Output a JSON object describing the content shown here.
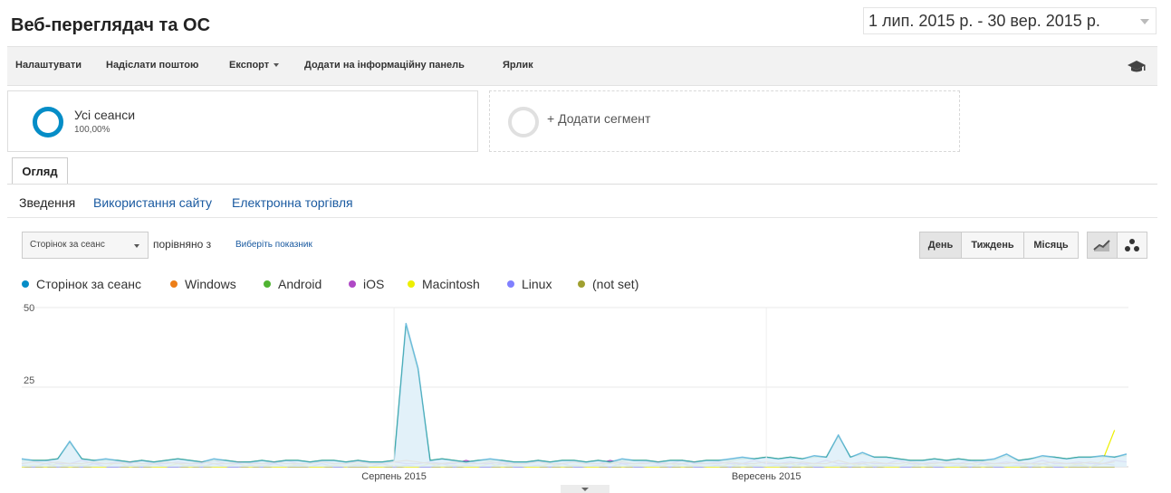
{
  "header": {
    "title": "Веб-переглядач та ОС",
    "date_range": "1 лип. 2015 р. - 30 вер. 2015 р."
  },
  "toolbar": {
    "settings": "Налаштувати",
    "email": "Надіслати поштою",
    "export": "Експорт",
    "add_dashboard": "Додати на інформаційну панель",
    "shortcut": "Ярлик",
    "icon": "graduation-cap-icon"
  },
  "segments": {
    "all": {
      "name": "Усі сеанси",
      "percent": "100,00%",
      "color": "#058dc7"
    },
    "add": {
      "label": "+ Додати сегмент"
    }
  },
  "tabs": {
    "overview": "Огляд"
  },
  "subtabs": [
    "Зведення",
    "Використання сайту",
    "Електронна торгівля"
  ],
  "controls": {
    "metric": "Сторінок за сеанс",
    "compare": "порівняно з",
    "pick_metric": "Виберіть показник",
    "day": "День",
    "week": "Тиждень",
    "month": "Місяць",
    "line_icon": "line-chart-icon",
    "motion_icon": "motion-chart-icon"
  },
  "legend": [
    {
      "name": "Сторінок за сеанс",
      "color": "#058dc7"
    },
    {
      "name": "Windows",
      "color": "#ed7e17"
    },
    {
      "name": "Android",
      "color": "#50b432"
    },
    {
      "name": "iOS",
      "color": "#af49c5"
    },
    {
      "name": "Macintosh",
      "color": "#edef00"
    },
    {
      "name": "Linux",
      "color": "#8080ff"
    },
    {
      "name": "(not set)",
      "color": "#a0a030"
    }
  ],
  "chart_data": {
    "type": "line",
    "x_start": "2015-07-01",
    "x_end": "2015-09-30",
    "x_ticks": [
      "Серпень 2015",
      "Вересень 2015"
    ],
    "y_ticks": [
      25,
      50
    ],
    "ylim": [
      0,
      50
    ],
    "grid": true,
    "legend_position": "top",
    "series": [
      {
        "name": "Сторінок за сеанс",
        "color": "#058dc7",
        "area": true,
        "values": [
          2.5,
          2,
          2,
          2.5,
          8,
          2.5,
          2,
          2.5,
          2,
          1.5,
          2,
          1.5,
          2,
          2.5,
          2,
          1.5,
          2.5,
          2,
          1.5,
          1.5,
          2,
          1.5,
          2,
          2,
          1.5,
          2,
          2,
          1.5,
          2,
          1.5,
          1.5,
          2,
          45,
          31,
          2,
          2.5,
          2,
          1.5,
          2,
          2.5,
          2,
          1.5,
          1.5,
          2,
          1.5,
          2,
          2,
          1.5,
          2,
          1.5,
          2.5,
          2,
          2,
          1.5,
          2,
          2,
          1.5,
          2,
          2,
          2.5,
          3,
          2.5,
          3,
          2.5,
          3,
          2.5,
          3.5,
          3,
          10,
          3,
          4.5,
          3,
          3,
          2.5,
          2,
          2,
          2.5,
          2,
          2.5,
          2,
          2,
          2.5,
          4,
          2,
          2.5,
          3.5,
          3,
          2.5,
          3,
          3,
          3.5,
          3,
          4
        ]
      },
      {
        "name": "Windows",
        "color": "#ed7e17",
        "values": [
          1,
          1.5,
          1,
          1.5,
          1,
          1,
          1.5,
          1,
          1,
          1.5,
          1,
          1,
          1.5,
          1,
          1,
          1.5,
          1,
          1,
          1.5,
          1,
          1,
          1.5,
          1,
          1,
          1,
          1.5,
          1,
          1,
          1.5,
          1,
          1,
          1.5,
          2,
          1.5,
          1,
          1,
          1.5,
          1,
          1,
          1.5,
          1,
          1,
          1,
          1.5,
          1,
          1,
          1.5,
          1,
          1,
          1,
          1.5,
          1,
          1,
          1.5,
          1,
          1,
          1.5,
          1,
          1,
          1.5,
          1,
          1,
          1.5,
          1,
          1,
          1.5,
          1,
          1,
          2,
          1,
          1,
          1.5,
          1,
          1,
          1.5,
          1,
          1,
          1.5,
          1,
          1,
          1.5,
          1,
          1,
          1.5,
          1,
          1,
          1.5,
          1,
          1,
          1.5,
          1,
          1.5
        ]
      },
      {
        "name": "Android",
        "color": "#50b432",
        "values": [
          2,
          2,
          2,
          2.5,
          7.5,
          2.5,
          2,
          2,
          2,
          1.5,
          2,
          1.5,
          2,
          2.5,
          2,
          1.5,
          2,
          2,
          1.5,
          1.5,
          2,
          1.5,
          2,
          2,
          1.5,
          2,
          2,
          1.5,
          2,
          1.5,
          1.5,
          2,
          44,
          30,
          2,
          2.5,
          2,
          1.5,
          2,
          2,
          2,
          1.5,
          1.5,
          2,
          1.5,
          2,
          2,
          1.5,
          2,
          1.5,
          2,
          2,
          2,
          1.5,
          2,
          2,
          1.5,
          2,
          2,
          2,
          2.5,
          2.5,
          3,
          2.5,
          3,
          2.5,
          3,
          3,
          9.5,
          3,
          4,
          3,
          3,
          2.5,
          2,
          2,
          2.5,
          2,
          2.5,
          2,
          2,
          2,
          3.5,
          2,
          2.5,
          3,
          3,
          2.5,
          3,
          3,
          3,
          3,
          3.5
        ]
      },
      {
        "name": "iOS",
        "color": "#af49c5",
        "values": [
          1,
          1.5,
          2,
          1,
          1,
          2,
          1,
          1,
          1.5,
          1,
          2,
          1,
          1,
          1.5,
          1,
          1,
          2,
          1,
          1,
          1.5,
          1,
          1,
          2,
          1,
          1,
          1.5,
          1,
          1,
          2,
          1,
          1,
          1.5,
          1,
          1,
          1.5,
          1,
          1,
          2,
          1,
          1,
          1.5,
          1,
          1,
          2,
          1,
          1,
          1.5,
          1,
          1,
          2,
          1,
          1,
          1.5,
          1,
          1,
          2,
          1,
          1,
          1.5,
          1,
          1,
          2,
          1,
          1,
          1.5,
          1,
          1,
          2,
          1,
          1,
          1.5,
          1,
          1,
          2,
          1,
          1,
          1.5,
          1,
          1,
          2,
          1,
          1,
          1.5,
          1,
          1,
          2,
          1,
          1,
          1.5,
          1,
          1,
          2,
          1.5
        ]
      },
      {
        "name": "Macintosh",
        "color": "#edef00",
        "values": [
          0,
          0.5,
          0,
          1,
          0,
          0.5,
          0,
          0,
          1.5,
          0,
          0.5,
          0,
          0,
          1,
          0,
          0.5,
          0,
          0,
          1,
          0,
          0.5,
          0,
          0,
          1,
          0,
          0,
          0.5,
          0,
          1,
          0,
          0,
          0.5,
          0,
          0,
          1,
          0,
          0.5,
          0,
          0,
          1,
          0,
          0.5,
          0,
          0,
          1,
          0,
          0.5,
          0,
          0,
          1.5,
          0,
          0.5,
          0,
          0,
          1,
          0,
          0.5,
          0,
          0,
          1,
          0,
          0.5,
          0,
          0,
          1,
          0,
          0.5,
          0,
          0,
          1,
          0,
          0.5,
          0,
          0,
          1,
          0,
          0.5,
          0,
          0,
          1,
          0,
          0.5,
          0,
          0,
          1,
          0,
          0.5,
          0,
          1,
          0,
          2,
          11.5
        ]
      },
      {
        "name": "Linux",
        "color": "#8080ff",
        "values": [
          0.5,
          0,
          1,
          0,
          0.5,
          0,
          1,
          0,
          0,
          0.5,
          0,
          1,
          0,
          0,
          0.5,
          0,
          1,
          0,
          0,
          0.5,
          0,
          1,
          0,
          0.5,
          0,
          1,
          0,
          0,
          0.5,
          0,
          1,
          0,
          0.5,
          0,
          0,
          1,
          0,
          0.5,
          0,
          0,
          1,
          0,
          0,
          0.5,
          0,
          1,
          0,
          0,
          0.5,
          0,
          1,
          0,
          0,
          0.5,
          0,
          1,
          0,
          0,
          0.5,
          0,
          1,
          0,
          0,
          0.5,
          0,
          1,
          0,
          0,
          0.5,
          0,
          1,
          0,
          0.5,
          0,
          0,
          1,
          0,
          0,
          0.5,
          0,
          1,
          0,
          0,
          0.5,
          0,
          1,
          0,
          0,
          0.5,
          0,
          1,
          0.5
        ]
      },
      {
        "name": "(not set)",
        "color": "#a0a030",
        "values": [
          0,
          0,
          0,
          0,
          0,
          0,
          0,
          0,
          0,
          0,
          0,
          0,
          0,
          0,
          0,
          0,
          0,
          0,
          0,
          0,
          0,
          0,
          0,
          0,
          0,
          0,
          0,
          0,
          0,
          0,
          0,
          0,
          0,
          0,
          0,
          0,
          0,
          0,
          0,
          0,
          0,
          0,
          0,
          0,
          0,
          0,
          0,
          0,
          0,
          0,
          0,
          0,
          0,
          0,
          0,
          0,
          0,
          0,
          0,
          0,
          0,
          0,
          0,
          0,
          0,
          0,
          0,
          0,
          0,
          0,
          0,
          0,
          0,
          0,
          0,
          0,
          0,
          0,
          0,
          0,
          0,
          0,
          0,
          0,
          0,
          0,
          0,
          0,
          0,
          0,
          0,
          0
        ]
      }
    ]
  }
}
